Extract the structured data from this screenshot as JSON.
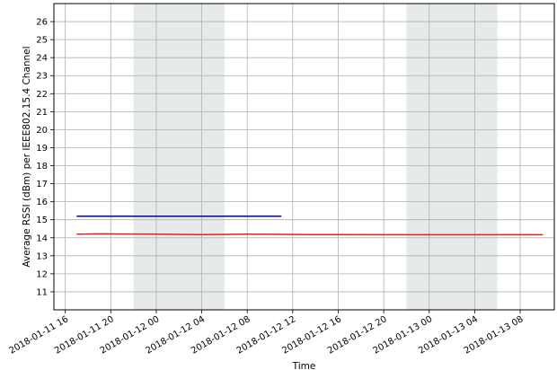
{
  "chart_data": {
    "type": "line",
    "title": "",
    "xlabel": "Time",
    "ylabel": "Average RSSI (dBm) per IEEE802.15.4 Channel",
    "x_range": [
      "2018-01-11 15:00",
      "2018-01-13 11:00"
    ],
    "ylim": [
      10,
      27
    ],
    "x_tick_labels": [
      "2018-01-11 16",
      "2018-01-11 20",
      "2018-01-12 00",
      "2018-01-12 04",
      "2018-01-12 08",
      "2018-01-12 12",
      "2018-01-12 16",
      "2018-01-12 20",
      "2018-01-13 00",
      "2018-01-13 04",
      "2018-01-13 08"
    ],
    "x_ticks": [
      "2018-01-11 16:00",
      "2018-01-11 20:00",
      "2018-01-12 00:00",
      "2018-01-12 04:00",
      "2018-01-12 08:00",
      "2018-01-12 12:00",
      "2018-01-12 16:00",
      "2018-01-12 20:00",
      "2018-01-13 00:00",
      "2018-01-13 04:00",
      "2018-01-13 08:00"
    ],
    "y_ticks": [
      11,
      12,
      13,
      14,
      15,
      16,
      17,
      18,
      19,
      20,
      21,
      22,
      23,
      24,
      25,
      26
    ],
    "grid": true,
    "shaded_spans": [
      {
        "start": "2018-01-11 22:00",
        "end": "2018-01-12 06:00",
        "color": "#e6eaea"
      },
      {
        "start": "2018-01-12 22:00",
        "end": "2018-01-13 06:00",
        "color": "#e6eaea"
      }
    ],
    "series": [
      {
        "color": "#0000aa",
        "points": [
          [
            "2018-01-11 17:00",
            15.2
          ],
          [
            "2018-01-12 02:00",
            15.2
          ],
          [
            "2018-01-12 11:00",
            15.2
          ]
        ]
      },
      {
        "color": "#dd2222",
        "points": [
          [
            "2018-01-11 17:00",
            14.2
          ],
          [
            "2018-01-11 19:00",
            14.22
          ],
          [
            "2018-01-12 00:00",
            14.2
          ],
          [
            "2018-01-12 04:00",
            14.18
          ],
          [
            "2018-01-12 08:00",
            14.2
          ],
          [
            "2018-01-12 14:00",
            14.18
          ],
          [
            "2018-01-12 20:00",
            14.17
          ],
          [
            "2018-01-13 02:00",
            14.17
          ],
          [
            "2018-01-13 10:00",
            14.17
          ]
        ]
      }
    ]
  }
}
